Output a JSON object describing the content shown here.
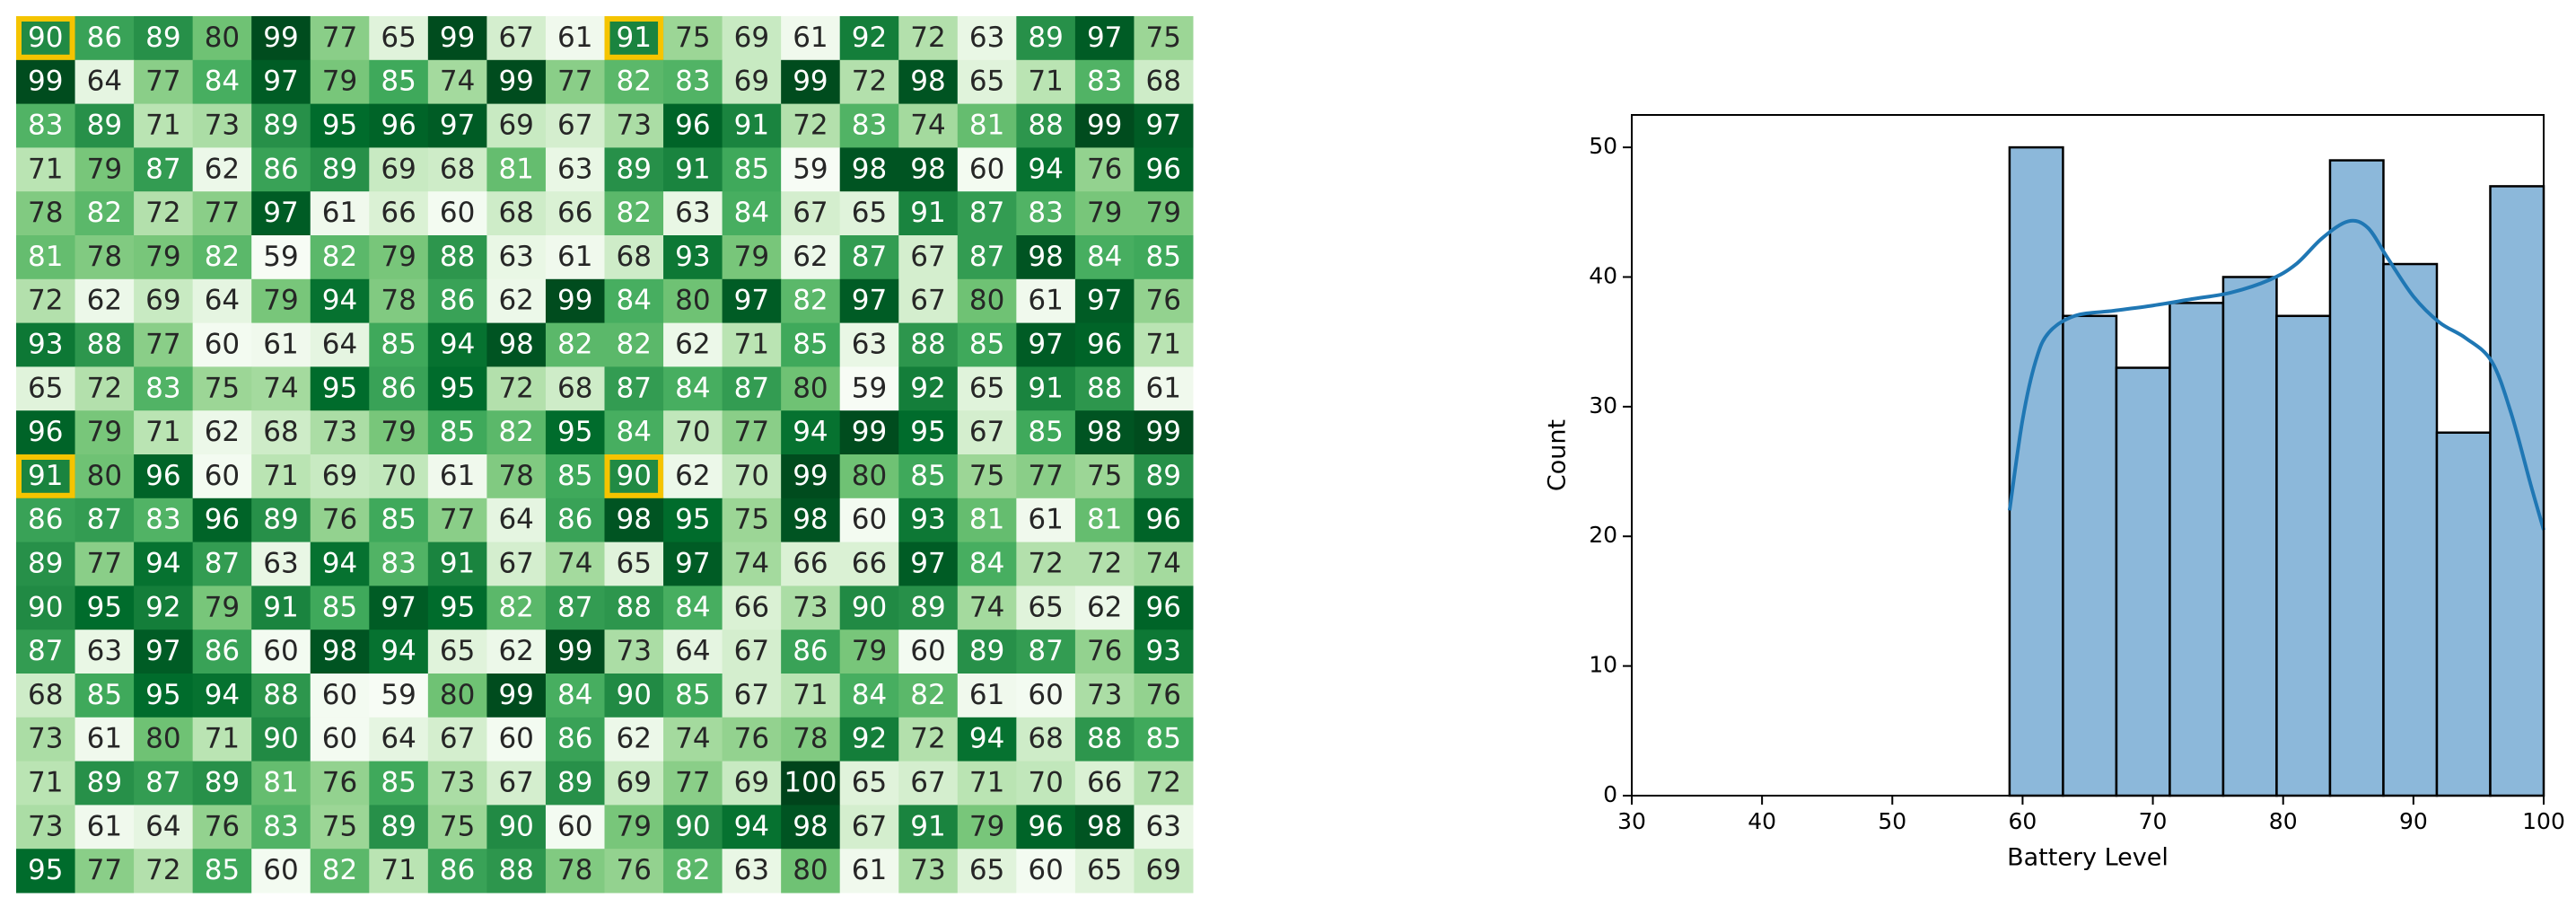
{
  "chart_data": [
    {
      "type": "heatmap",
      "colormap": "Greens",
      "highlight_color": "#f5c400",
      "highlights": [
        [
          0,
          0
        ],
        [
          0,
          10
        ],
        [
          10,
          0
        ],
        [
          10,
          10
        ]
      ],
      "values": [
        [
          90,
          86,
          89,
          80,
          99,
          77,
          65,
          99,
          67,
          61,
          91,
          75,
          69,
          61,
          92,
          72,
          63,
          89,
          97,
          75
        ],
        [
          99,
          64,
          77,
          84,
          97,
          79,
          85,
          74,
          99,
          77,
          82,
          83,
          69,
          99,
          72,
          98,
          65,
          71,
          83,
          68
        ],
        [
          83,
          89,
          71,
          73,
          89,
          95,
          96,
          97,
          69,
          67,
          73,
          96,
          91,
          72,
          83,
          74,
          81,
          88,
          99,
          97
        ],
        [
          71,
          79,
          87,
          62,
          86,
          89,
          69,
          68,
          81,
          63,
          89,
          91,
          85,
          59,
          98,
          98,
          60,
          94,
          76,
          96
        ],
        [
          78,
          82,
          72,
          77,
          97,
          61,
          66,
          60,
          68,
          66,
          82,
          63,
          84,
          67,
          65,
          91,
          87,
          83,
          79,
          79
        ],
        [
          81,
          78,
          79,
          82,
          59,
          82,
          79,
          88,
          63,
          61,
          68,
          93,
          79,
          62,
          87,
          67,
          87,
          98,
          84,
          85
        ],
        [
          72,
          62,
          69,
          64,
          79,
          94,
          78,
          86,
          62,
          99,
          84,
          80,
          97,
          82,
          97,
          67,
          80,
          61,
          97,
          76
        ],
        [
          93,
          88,
          77,
          60,
          61,
          64,
          85,
          94,
          98,
          82,
          82,
          62,
          71,
          85,
          63,
          88,
          85,
          97,
          96,
          71
        ],
        [
          65,
          72,
          83,
          75,
          74,
          95,
          86,
          95,
          72,
          68,
          87,
          84,
          87,
          80,
          59,
          92,
          65,
          91,
          88,
          61
        ],
        [
          96,
          79,
          71,
          62,
          68,
          73,
          79,
          85,
          82,
          95,
          84,
          70,
          77,
          94,
          99,
          95,
          67,
          85,
          98,
          99
        ],
        [
          91,
          80,
          96,
          60,
          71,
          69,
          70,
          61,
          78,
          85,
          90,
          62,
          70,
          99,
          80,
          85,
          75,
          77,
          75,
          89
        ],
        [
          86,
          87,
          83,
          96,
          89,
          76,
          85,
          77,
          64,
          86,
          98,
          95,
          75,
          98,
          60,
          93,
          81,
          61,
          81,
          96
        ],
        [
          89,
          77,
          94,
          87,
          63,
          94,
          83,
          91,
          67,
          74,
          65,
          97,
          74,
          66,
          66,
          97,
          84,
          72,
          72,
          74
        ],
        [
          90,
          95,
          92,
          79,
          91,
          85,
          97,
          95,
          82,
          87,
          88,
          84,
          66,
          73,
          90,
          89,
          74,
          65,
          62,
          96
        ],
        [
          87,
          63,
          97,
          86,
          60,
          98,
          94,
          65,
          62,
          99,
          73,
          64,
          67,
          86,
          79,
          60,
          89,
          87,
          76,
          93
        ],
        [
          68,
          85,
          95,
          94,
          88,
          60,
          59,
          80,
          99,
          84,
          90,
          85,
          67,
          71,
          84,
          82,
          61,
          60,
          73,
          76
        ],
        [
          73,
          61,
          80,
          71,
          90,
          60,
          64,
          67,
          60,
          86,
          62,
          74,
          76,
          78,
          92,
          72,
          94,
          68,
          88,
          85
        ],
        [
          71,
          89,
          87,
          89,
          81,
          76,
          85,
          73,
          67,
          89,
          69,
          77,
          69,
          100,
          65,
          67,
          71,
          70,
          66,
          72
        ],
        [
          73,
          61,
          64,
          76,
          83,
          75,
          89,
          75,
          90,
          60,
          79,
          90,
          94,
          98,
          67,
          91,
          79,
          96,
          98,
          63
        ],
        [
          95,
          77,
          72,
          85,
          60,
          82,
          71,
          86,
          88,
          78,
          76,
          82,
          63,
          80,
          61,
          73,
          65,
          60,
          65,
          69
        ]
      ]
    },
    {
      "type": "histogram",
      "xlabel": "Battery Level",
      "ylabel": "Count",
      "bins": [
        59,
        63.1,
        67.2,
        71.3,
        75.4,
        79.5,
        83.6,
        87.7,
        91.8,
        95.9,
        100
      ],
      "values": [
        50,
        37,
        33,
        38,
        40,
        37,
        49,
        41,
        28,
        47
      ],
      "color": "#8cb8da",
      "edge_color": "#000000",
      "kde": {
        "color": "#1f77b4",
        "x": [
          59,
          60,
          61,
          62,
          64,
          67,
          70,
          73,
          76,
          79,
          81,
          83,
          85,
          86.5,
          88,
          90,
          92,
          94,
          96,
          97.5,
          99,
          100
        ],
        "values": [
          22,
          29,
          33.5,
          35.7,
          37,
          37.4,
          37.8,
          38.3,
          38.8,
          39.8,
          41,
          43,
          44.3,
          43.8,
          41.5,
          38.5,
          36.5,
          35.3,
          33.5,
          29.5,
          24,
          20.5
        ]
      },
      "xlim": [
        30,
        100
      ],
      "xticks": [
        30,
        40,
        50,
        60,
        70,
        80,
        90,
        100
      ],
      "ylim": [
        0,
        52.5
      ],
      "yticks": [
        0,
        10,
        20,
        30,
        40,
        50
      ]
    }
  ]
}
